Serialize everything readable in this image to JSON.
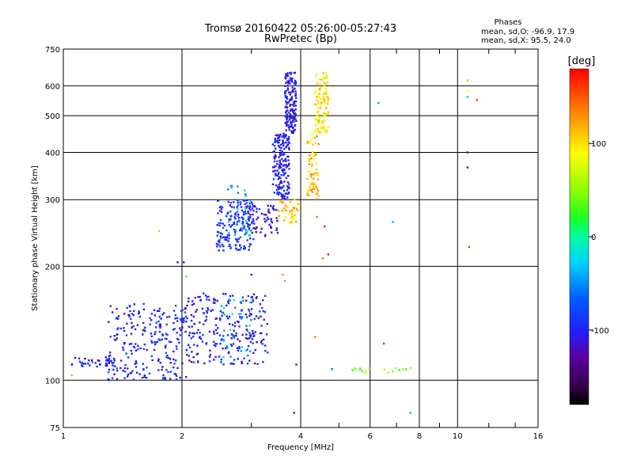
{
  "chart_data": {
    "type": "scatter",
    "title": "Tromsø 20160422 05:26:00-05:27:43",
    "subtitle": "RwPretec (Bp)",
    "xlabel": "Frequency [MHz]",
    "ylabel": "Stationary phase Virtual Height [km]",
    "x_scale": "log",
    "y_scale": "log",
    "xlim": [
      1,
      16
    ],
    "ylim": [
      75,
      750
    ],
    "x_ticks": [
      1,
      2,
      4,
      6,
      8,
      10,
      16
    ],
    "x_tick_labels": [
      "1",
      "2",
      "4",
      "6",
      "8",
      "10",
      "16"
    ],
    "y_ticks": [
      75,
      100,
      200,
      300,
      400,
      500,
      600,
      750
    ],
    "y_tick_labels": [
      "75",
      "100",
      "200",
      "300",
      "400",
      "500",
      "600",
      "750"
    ],
    "grid": true,
    "stats": {
      "heading": "Phases",
      "line_o": "mean, sd,O: -96.9, 17.9",
      "line_x": "mean, sd,X:  95.5, 24.0"
    },
    "colorbar": {
      "label": "[deg]",
      "range": [
        -180,
        180
      ],
      "ticks": [
        100,
        0,
        -100
      ],
      "tick_labels": [
        "100",
        "0",
        "-100"
      ]
    },
    "clusters": [
      {
        "x": [
          1.05,
          1.35
        ],
        "y": [
          108,
          115
        ],
        "phase": -100,
        "n": 40
      },
      {
        "x": [
          1.3,
          2.0
        ],
        "y": [
          100,
          160
        ],
        "phase": -95,
        "n": 230
      },
      {
        "x": [
          2.0,
          3.3
        ],
        "y": [
          110,
          170
        ],
        "phase": -100,
        "n": 260
      },
      {
        "x": [
          2.5,
          3.0
        ],
        "y": [
          115,
          165
        ],
        "phase": -35,
        "n": 35
      },
      {
        "x": [
          2.45,
          3.05
        ],
        "y": [
          220,
          300
        ],
        "phase": -90,
        "n": 170
      },
      {
        "x": [
          2.6,
          3.0
        ],
        "y": [
          240,
          330
        ],
        "phase": -40,
        "n": 30
      },
      {
        "x": [
          2.9,
          3.5
        ],
        "y": [
          240,
          290
        ],
        "phase": -110,
        "n": 60
      },
      {
        "x": [
          3.4,
          3.75
        ],
        "y": [
          300,
          450
        ],
        "phase": -100,
        "n": 180
      },
      {
        "x": [
          3.65,
          3.9
        ],
        "y": [
          450,
          650
        ],
        "phase": -105,
        "n": 160
      },
      {
        "x": [
          3.5,
          3.95
        ],
        "y": [
          260,
          300
        ],
        "phase": 110,
        "n": 45
      },
      {
        "x": [
          4.15,
          4.45
        ],
        "y": [
          300,
          450
        ],
        "phase": 115,
        "n": 70
      },
      {
        "x": [
          4.35,
          4.7
        ],
        "y": [
          450,
          650
        ],
        "phase": 95,
        "n": 110
      },
      {
        "x": [
          5.4,
          7.6
        ],
        "y": [
          104,
          108
        ],
        "phase": 40,
        "n": 18
      }
    ],
    "points": [
      {
        "x": 1.05,
        "y": 103,
        "phase": 120
      },
      {
        "x": 1.75,
        "y": 248,
        "phase": 110
      },
      {
        "x": 1.95,
        "y": 205,
        "phase": -110
      },
      {
        "x": 2.02,
        "y": 205,
        "phase": -110
      },
      {
        "x": 2.05,
        "y": 188,
        "phase": 30
      },
      {
        "x": 2.05,
        "y": 102,
        "phase": -110
      },
      {
        "x": 3.0,
        "y": 190,
        "phase": -100
      },
      {
        "x": 3.4,
        "y": 420,
        "phase": -100
      },
      {
        "x": 3.65,
        "y": 183,
        "phase": 130
      },
      {
        "x": 3.6,
        "y": 190,
        "phase": 130
      },
      {
        "x": 3.9,
        "y": 110,
        "phase": -100
      },
      {
        "x": 3.85,
        "y": 82,
        "phase": -100
      },
      {
        "x": 4.35,
        "y": 130,
        "phase": 140
      },
      {
        "x": 4.4,
        "y": 270,
        "phase": 140
      },
      {
        "x": 4.55,
        "y": 210,
        "phase": 140
      },
      {
        "x": 4.7,
        "y": 215,
        "phase": 180
      },
      {
        "x": 4.6,
        "y": 255,
        "phase": 170
      },
      {
        "x": 4.8,
        "y": 107,
        "phase": -60
      },
      {
        "x": 6.3,
        "y": 540,
        "phase": -40
      },
      {
        "x": 6.5,
        "y": 125,
        "phase": 180
      },
      {
        "x": 6.85,
        "y": 262,
        "phase": -40
      },
      {
        "x": 7.6,
        "y": 82,
        "phase": -40
      },
      {
        "x": 10.6,
        "y": 620,
        "phase": 120
      },
      {
        "x": 10.6,
        "y": 580,
        "phase": 90
      },
      {
        "x": 10.6,
        "y": 560,
        "phase": -40
      },
      {
        "x": 10.6,
        "y": 400,
        "phase": -110
      },
      {
        "x": 10.6,
        "y": 365,
        "phase": -110
      },
      {
        "x": 10.7,
        "y": 225,
        "phase": 160
      },
      {
        "x": 11.2,
        "y": 550,
        "phase": 160
      }
    ]
  }
}
